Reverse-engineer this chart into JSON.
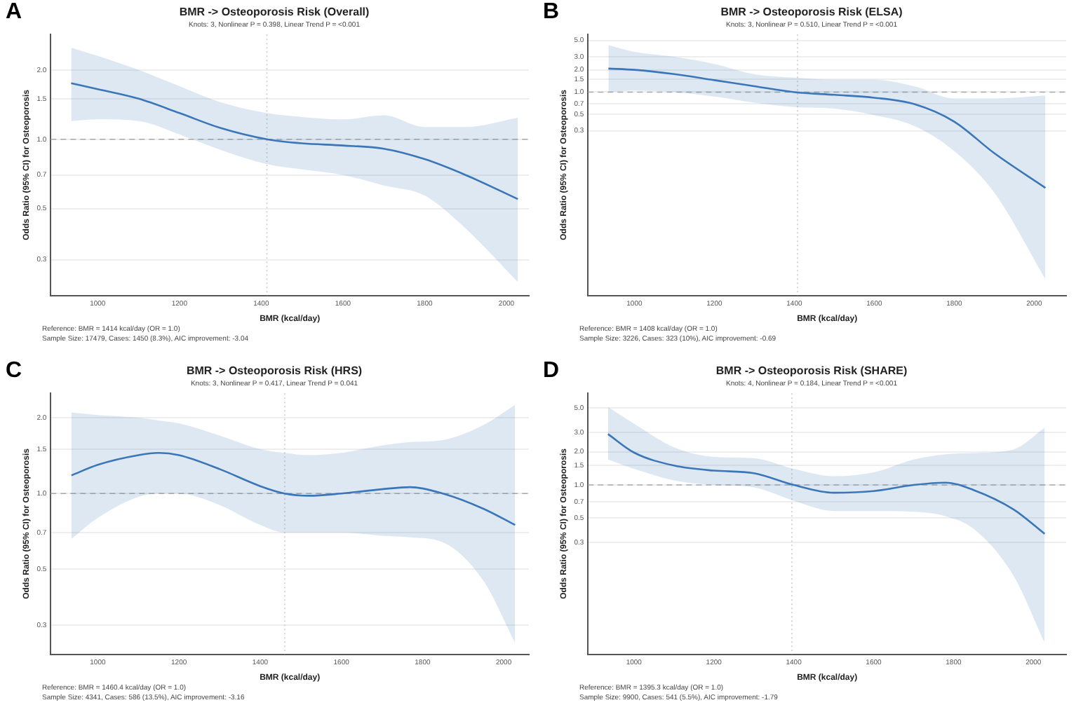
{
  "chart_data": [
    {
      "type": "line",
      "title": "BMR -> Osteoporosis Risk (Overall)",
      "subtitle": "Knots: 3, Nonlinear P = 0.398, Linear Trend P = <0.001",
      "xlabel": "BMR (kcal/day)",
      "ylabel": "Odds Ratio (95% CI) for Osteoporosis",
      "annotations": [
        "A",
        "Reference: BMR = 1414 kcal/day (OR = 1.0)",
        "Sample Size: 17479, Cases: 1450 (8.3%), AIC improvement: -3.04"
      ],
      "log": "y",
      "grid": "y",
      "legend": false,
      "marker": "none",
      "line_style": "solid",
      "xlim": [
        885,
        2055
      ],
      "xticks": [
        1000,
        1200,
        1400,
        1600,
        1800,
        2000
      ],
      "ylim": [
        0.21,
        2.85
      ],
      "yticks": [
        0.3,
        0.5,
        0.7,
        {
          "value": 1,
          "label": "1.0"
        },
        1.5,
        {
          "value": 2,
          "label": "2.0"
        }
      ],
      "x": [
        935,
        1000,
        1100,
        1200,
        1300,
        1414,
        1500,
        1600,
        1700,
        1800,
        1900,
        2028
      ],
      "series": [
        {
          "color": "#3a76b8",
          "values": [
            1.75,
            1.65,
            1.5,
            1.3,
            1.12,
            1.0,
            0.96,
            0.94,
            0.91,
            0.82,
            0.7,
            0.55
          ],
          "lower": [
            1.2,
            1.22,
            1.2,
            1.05,
            0.9,
            0.78,
            0.74,
            0.7,
            0.63,
            0.57,
            0.41,
            0.24
          ],
          "upper": [
            2.5,
            2.3,
            2.0,
            1.7,
            1.45,
            1.3,
            1.25,
            1.22,
            1.27,
            1.13,
            1.13,
            1.24
          ]
        }
      ],
      "ref_lines": [
        {
          "axis": "x",
          "value": 1414,
          "color": "#cccccc",
          "line_style": "dotted"
        },
        {
          "axis": "y",
          "value": 1,
          "color": "#aaaaaa",
          "line_style": "dashed"
        }
      ]
    },
    {
      "type": "line",
      "title": "BMR -> Osteoporosis Risk (ELSA)",
      "subtitle": "Knots: 3, Nonlinear P = 0.510, Linear Trend P = <0.001",
      "xlabel": "BMR (kcal/day)",
      "ylabel": "Odds Ratio (95% CI) for Osteoporosis",
      "annotations": [
        "B",
        "Reference: BMR = 1408 kcal/day (OR = 1.0)",
        "Sample Size: 3226, Cases: 323 (10%), AIC improvement: -0.69"
      ],
      "log": "y",
      "grid": "y",
      "legend": false,
      "marker": "none",
      "line_style": "solid",
      "xlim": [
        884,
        2080
      ],
      "xticks": [
        1000,
        1200,
        1400,
        1600,
        1800,
        2000
      ],
      "ylim": [
        0.0018,
        6.0
      ],
      "yticks": [
        0.3,
        0.5,
        0.7,
        {
          "value": 1,
          "label": "1.0"
        },
        1.5,
        {
          "value": 2,
          "label": "2.0"
        },
        {
          "value": 3,
          "label": "3.0"
        },
        {
          "value": 5,
          "label": "5.0"
        }
      ],
      "x": [
        935,
        1000,
        1100,
        1200,
        1300,
        1400,
        1500,
        1600,
        1700,
        1800,
        1900,
        2028
      ],
      "series": [
        {
          "color": "#3a76b8",
          "values": [
            2.08,
            2.0,
            1.75,
            1.45,
            1.2,
            1.0,
            0.92,
            0.84,
            0.69,
            0.4,
            0.15,
            0.051
          ],
          "lower": [
            1.0,
            1.05,
            1.0,
            0.87,
            0.72,
            0.63,
            0.6,
            0.49,
            0.35,
            0.16,
            0.044,
            0.003
          ],
          "upper": [
            4.3,
            3.5,
            3.0,
            2.4,
            1.74,
            1.57,
            1.47,
            1.47,
            1.2,
            0.82,
            0.82,
            0.9
          ]
        }
      ],
      "ref_lines": [
        {
          "axis": "x",
          "value": 1408,
          "color": "#cccccc",
          "line_style": "dotted"
        },
        {
          "axis": "y",
          "value": 1,
          "color": "#aaaaaa",
          "line_style": "dashed"
        }
      ]
    },
    {
      "type": "line",
      "title": "BMR -> Osteoporosis Risk (HRS)",
      "subtitle": "Knots: 3, Nonlinear P = 0.417, Linear Trend P = 0.041",
      "xlabel": "BMR (kcal/day)",
      "ylabel": "Odds Ratio (95% CI) for Osteoporosis",
      "annotations": [
        "C",
        "Reference: BMR = 1460.4 kcal/day (OR = 1.0)",
        "Sample Size: 4341, Cases: 586 (13.5%), AIC improvement: -3.16"
      ],
      "log": "y",
      "grid": "y",
      "legend": false,
      "marker": "none",
      "line_style": "solid",
      "xlim": [
        884,
        2062
      ],
      "xticks": [
        1000,
        1200,
        1400,
        1600,
        1800,
        2000
      ],
      "ylim": [
        0.23,
        2.5
      ],
      "yticks": [
        0.3,
        0.5,
        0.7,
        {
          "value": 1,
          "label": "1.0"
        },
        1.5,
        {
          "value": 2,
          "label": "2.0"
        }
      ],
      "x": [
        935,
        1000,
        1100,
        1150,
        1200,
        1300,
        1400,
        1460,
        1520,
        1600,
        1700,
        1770,
        1850,
        1950,
        2028
      ],
      "series": [
        {
          "color": "#3a76b8",
          "values": [
            1.18,
            1.3,
            1.42,
            1.45,
            1.42,
            1.25,
            1.07,
            1.0,
            0.98,
            1.0,
            1.04,
            1.06,
            1.0,
            0.87,
            0.75
          ],
          "lower": [
            0.66,
            0.8,
            0.97,
            1.0,
            1.0,
            0.9,
            0.75,
            0.7,
            0.7,
            0.7,
            0.68,
            0.67,
            0.64,
            0.45,
            0.255
          ],
          "upper": [
            2.1,
            2.05,
            2.0,
            1.95,
            1.9,
            1.7,
            1.5,
            1.45,
            1.42,
            1.45,
            1.55,
            1.6,
            1.63,
            1.87,
            2.25
          ]
        }
      ],
      "ref_lines": [
        {
          "axis": "x",
          "value": 1460.4,
          "color": "#cccccc",
          "line_style": "dotted"
        },
        {
          "axis": "y",
          "value": 1,
          "color": "#aaaaaa",
          "line_style": "dashed"
        }
      ]
    },
    {
      "type": "line",
      "title": "BMR -> Osteoporosis Risk (SHARE)",
      "subtitle": "Knots: 4, Nonlinear P = 0.184, Linear Trend P = <0.001",
      "xlabel": "BMR (kcal/day)",
      "ylabel": "Odds Ratio (95% CI) for Osteoporosis",
      "annotations": [
        "D",
        "Reference: BMR = 1395.3 kcal/day (OR = 1.0)",
        "Sample Size: 9900, Cases: 541 (5.5%), AIC improvement: -1.79"
      ],
      "log": "y",
      "grid": "y",
      "legend": false,
      "marker": "none",
      "line_style": "solid",
      "xlim": [
        885,
        2082
      ],
      "xticks": [
        1000,
        1200,
        1400,
        1600,
        1800,
        2000
      ],
      "ylim": [
        0.029,
        6.8
      ],
      "yticks": [
        0.3,
        0.5,
        0.7,
        {
          "value": 1,
          "label": "1.0"
        },
        1.5,
        {
          "value": 2,
          "label": "2.0"
        },
        {
          "value": 3,
          "label": "3.0"
        },
        {
          "value": 5,
          "label": "5.0"
        }
      ],
      "x": [
        935,
        1000,
        1100,
        1200,
        1300,
        1400,
        1500,
        1600,
        1700,
        1780,
        1850,
        1950,
        2028
      ],
      "series": [
        {
          "color": "#3a76b8",
          "values": [
            2.9,
            1.97,
            1.5,
            1.35,
            1.28,
            1.0,
            0.85,
            0.88,
            1.0,
            1.05,
            0.9,
            0.6,
            0.36
          ],
          "lower": [
            1.7,
            1.4,
            1.1,
            1.0,
            0.95,
            0.72,
            0.58,
            0.58,
            0.57,
            0.52,
            0.4,
            0.15,
            0.037
          ],
          "upper": [
            5.1,
            3.6,
            2.2,
            1.8,
            1.75,
            1.4,
            1.2,
            1.3,
            1.7,
            1.9,
            1.95,
            2.1,
            3.3
          ]
        }
      ],
      "ref_lines": [
        {
          "axis": "x",
          "value": 1395.3,
          "color": "#cccccc",
          "line_style": "dotted"
        },
        {
          "axis": "y",
          "value": 1,
          "color": "#aaaaaa",
          "line_style": "dashed"
        }
      ]
    }
  ]
}
